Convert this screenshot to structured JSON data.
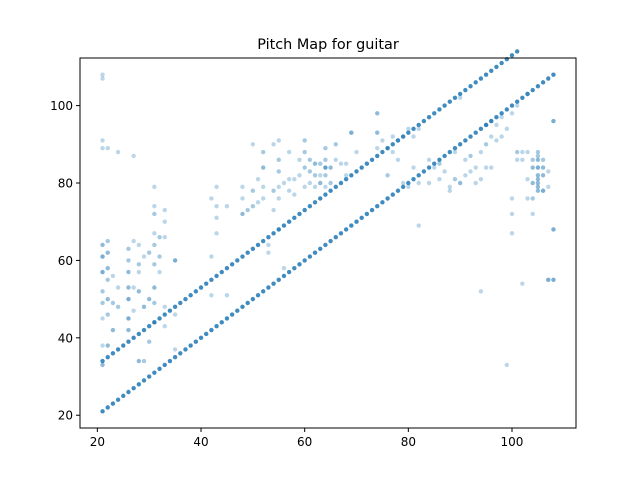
{
  "chart_data": {
    "type": "scatter",
    "title": "Pitch Map for guitar",
    "xlabel": "",
    "ylabel": "",
    "xlim": [
      16.65,
      112.35
    ],
    "ylim": [
      16.7,
      112.3
    ],
    "xticks": [
      20,
      40,
      60,
      80,
      100
    ],
    "yticks": [
      20,
      40,
      60,
      80,
      100
    ],
    "grid": false,
    "legend": "none",
    "color": "#1f77b4",
    "lines": [
      {
        "x_start": 21,
        "x_end": 101,
        "y_offset": 13,
        "opacity": 0.85
      },
      {
        "x_start": 21,
        "x_end": 108,
        "y_offset": 0,
        "opacity": 0.85
      }
    ],
    "points": [
      [
        21,
        108,
        0.3
      ],
      [
        21,
        107,
        0.3
      ],
      [
        21,
        91,
        0.3
      ],
      [
        21,
        89,
        0.3
      ],
      [
        22,
        89,
        0.3
      ],
      [
        24,
        88,
        0.3
      ],
      [
        27,
        87,
        0.3
      ],
      [
        21,
        64,
        0.5
      ],
      [
        21,
        61,
        0.6
      ],
      [
        21,
        57,
        0.6
      ],
      [
        21,
        52,
        0.4
      ],
      [
        21,
        49,
        0.4
      ],
      [
        21,
        45,
        0.3
      ],
      [
        21,
        38,
        0.3
      ],
      [
        21,
        33,
        0.5
      ],
      [
        22,
        65,
        0.4
      ],
      [
        22,
        62,
        0.5
      ],
      [
        22,
        58,
        0.5
      ],
      [
        22,
        55,
        0.4
      ],
      [
        22,
        50,
        0.5
      ],
      [
        22,
        46,
        0.4
      ],
      [
        22,
        38,
        0.5
      ],
      [
        23,
        56,
        0.3
      ],
      [
        23,
        49,
        0.4
      ],
      [
        23,
        42,
        0.5
      ],
      [
        24,
        53,
        0.3
      ],
      [
        24,
        48,
        0.4
      ],
      [
        26,
        63,
        0.4
      ],
      [
        26,
        60,
        0.4
      ],
      [
        26,
        57,
        0.5
      ],
      [
        26,
        53,
        0.5
      ],
      [
        26,
        50,
        0.6
      ],
      [
        26,
        45,
        0.6
      ],
      [
        26,
        42,
        0.5
      ],
      [
        27,
        65,
        0.3
      ],
      [
        27,
        53,
        0.3
      ],
      [
        27,
        47,
        0.3
      ],
      [
        28,
        64,
        0.3
      ],
      [
        28,
        59,
        0.4
      ],
      [
        28,
        57,
        0.3
      ],
      [
        28,
        52,
        0.5
      ],
      [
        28,
        34,
        0.5
      ],
      [
        29,
        61,
        0.3
      ],
      [
        29,
        48,
        0.5
      ],
      [
        29,
        34,
        0.4
      ],
      [
        30,
        62,
        0.4
      ],
      [
        30,
        50,
        0.5
      ],
      [
        30,
        39,
        0.4
      ],
      [
        31,
        79,
        0.3
      ],
      [
        31,
        74,
        0.3
      ],
      [
        31,
        72,
        0.4
      ],
      [
        31,
        67,
        0.3
      ],
      [
        31,
        64,
        0.4
      ],
      [
        31,
        59,
        0.4
      ],
      [
        31,
        53,
        0.5
      ],
      [
        31,
        49,
        0.4
      ],
      [
        31,
        44,
        0.5
      ],
      [
        32,
        66,
        0.4
      ],
      [
        32,
        61,
        0.4
      ],
      [
        32,
        57,
        0.3
      ],
      [
        33,
        73,
        0.3
      ],
      [
        33,
        70,
        0.3
      ],
      [
        33,
        66,
        0.3
      ],
      [
        33,
        48,
        0.3
      ],
      [
        33,
        43,
        0.3
      ],
      [
        35,
        60,
        0.6
      ],
      [
        35,
        46,
        0.3
      ],
      [
        35,
        37,
        0.3
      ],
      [
        42,
        76,
        0.3
      ],
      [
        42,
        61,
        0.3
      ],
      [
        42,
        51,
        0.3
      ],
      [
        43,
        79,
        0.3
      ],
      [
        43,
        74,
        0.3
      ],
      [
        43,
        71,
        0.3
      ],
      [
        43,
        67,
        0.3
      ],
      [
        45,
        74,
        0.3
      ],
      [
        45,
        51,
        0.3
      ],
      [
        48,
        79,
        0.3
      ],
      [
        48,
        76,
        0.3
      ],
      [
        48,
        72,
        0.5
      ],
      [
        49,
        73,
        0.4
      ],
      [
        50,
        90,
        0.3
      ],
      [
        50,
        78,
        0.4
      ],
      [
        50,
        74,
        0.4
      ],
      [
        51,
        81,
        0.3
      ],
      [
        51,
        75,
        0.3
      ],
      [
        52,
        88,
        0.4
      ],
      [
        52,
        84,
        0.5
      ],
      [
        52,
        79,
        0.3
      ],
      [
        52,
        76,
        0.3
      ],
      [
        53,
        64,
        0.3
      ],
      [
        53,
        62,
        0.3
      ],
      [
        54,
        90,
        0.3
      ],
      [
        54,
        78,
        0.4
      ],
      [
        54,
        73,
        0.3
      ],
      [
        55,
        91,
        0.3
      ],
      [
        55,
        86,
        0.4
      ],
      [
        55,
        83,
        0.4
      ],
      [
        55,
        79,
        0.3
      ],
      [
        55,
        76,
        0.3
      ],
      [
        55,
        68,
        0.3
      ],
      [
        56,
        80,
        0.3
      ],
      [
        56,
        58,
        0.3
      ],
      [
        57,
        88,
        0.3
      ],
      [
        57,
        81,
        0.3
      ],
      [
        57,
        78,
        0.3
      ],
      [
        58,
        81,
        0.3
      ],
      [
        58,
        77,
        0.3
      ],
      [
        59,
        86,
        0.3
      ],
      [
        59,
        82,
        0.3
      ],
      [
        60,
        91,
        0.4
      ],
      [
        60,
        88,
        0.4
      ],
      [
        60,
        84,
        0.4
      ],
      [
        60,
        79,
        0.3
      ],
      [
        61,
        86,
        0.4
      ],
      [
        61,
        83,
        0.4
      ],
      [
        61,
        80,
        0.3
      ],
      [
        62,
        85,
        0.5
      ],
      [
        62,
        82,
        0.4
      ],
      [
        62,
        79,
        0.3
      ],
      [
        63,
        85,
        0.4
      ],
      [
        63,
        82,
        0.3
      ],
      [
        63,
        80,
        0.5
      ],
      [
        64,
        89,
        0.4
      ],
      [
        64,
        86,
        0.4
      ],
      [
        64,
        84,
        0.7
      ],
      [
        64,
        82,
        0.4
      ],
      [
        64,
        79,
        0.3
      ],
      [
        65,
        84,
        0.5
      ],
      [
        65,
        80,
        0.4
      ],
      [
        66,
        90,
        0.4
      ],
      [
        66,
        86,
        0.3
      ],
      [
        67,
        85,
        0.3
      ],
      [
        68,
        85,
        0.3
      ],
      [
        68,
        82,
        0.3
      ],
      [
        69,
        93,
        0.6
      ],
      [
        70,
        88,
        0.3
      ],
      [
        74,
        98,
        0.5
      ],
      [
        74,
        93,
        0.5
      ],
      [
        74,
        89,
        0.3
      ],
      [
        75,
        91,
        0.3
      ],
      [
        76,
        89,
        0.4
      ],
      [
        76,
        82,
        0.4
      ],
      [
        77,
        92,
        0.3
      ],
      [
        77,
        88,
        0.3
      ],
      [
        78,
        91,
        0.3
      ],
      [
        78,
        86,
        0.3
      ],
      [
        79,
        92,
        0.3
      ],
      [
        79,
        80,
        0.3
      ],
      [
        80,
        94,
        0.3
      ],
      [
        80,
        79,
        0.3
      ],
      [
        81,
        92,
        0.3
      ],
      [
        81,
        84,
        0.3
      ],
      [
        82,
        69,
        0.3
      ],
      [
        82,
        80,
        0.3
      ],
      [
        82,
        94,
        0.3
      ],
      [
        84,
        86,
        0.3
      ],
      [
        84,
        80,
        0.3
      ],
      [
        85,
        84,
        0.3
      ],
      [
        86,
        85,
        0.4
      ],
      [
        86,
        81,
        0.3
      ],
      [
        87,
        83,
        0.3
      ],
      [
        88,
        78,
        0.3
      ],
      [
        88,
        79,
        0.3
      ],
      [
        89,
        81,
        0.4
      ],
      [
        89,
        88,
        0.3
      ],
      [
        90,
        102,
        0.3
      ],
      [
        90,
        80,
        0.5
      ],
      [
        91,
        86,
        0.3
      ],
      [
        91,
        82,
        0.3
      ],
      [
        92,
        87,
        0.4
      ],
      [
        92,
        83,
        0.3
      ],
      [
        93,
        80,
        0.3
      ],
      [
        93,
        84,
        0.3
      ],
      [
        94,
        52,
        0.3
      ],
      [
        94,
        88,
        0.3
      ],
      [
        94,
        81,
        0.3
      ],
      [
        95,
        95,
        0.5
      ],
      [
        95,
        90,
        0.4
      ],
      [
        95,
        84,
        0.3
      ],
      [
        96,
        96,
        0.4
      ],
      [
        96,
        92,
        0.3
      ],
      [
        96,
        84,
        0.3
      ],
      [
        97,
        95,
        0.3
      ],
      [
        97,
        91,
        0.3
      ],
      [
        98,
        92,
        0.3
      ],
      [
        98,
        97,
        0.3
      ],
      [
        99,
        33,
        0.3
      ],
      [
        99,
        94,
        0.3
      ],
      [
        100,
        76,
        0.3
      ],
      [
        100,
        72,
        0.3
      ],
      [
        100,
        67,
        0.3
      ],
      [
        100,
        98,
        0.3
      ],
      [
        101,
        100,
        0.3
      ],
      [
        101,
        88,
        0.4
      ],
      [
        101,
        86,
        0.3
      ],
      [
        102,
        54,
        0.3
      ],
      [
        102,
        88,
        0.3
      ],
      [
        102,
        86,
        0.3
      ],
      [
        103,
        103,
        0.3
      ],
      [
        103,
        88,
        0.3
      ],
      [
        103,
        81,
        0.3
      ],
      [
        103,
        76,
        0.3
      ],
      [
        104,
        86,
        0.4
      ],
      [
        104,
        84,
        0.5
      ],
      [
        104,
        80,
        0.5
      ],
      [
        104,
        76,
        0.4
      ],
      [
        104,
        72,
        0.3
      ],
      [
        105,
        88,
        0.4
      ],
      [
        105,
        87,
        0.4
      ],
      [
        105,
        86,
        0.5
      ],
      [
        105,
        84,
        0.6
      ],
      [
        105,
        82,
        0.5
      ],
      [
        105,
        81,
        0.5
      ],
      [
        105,
        80,
        0.5
      ],
      [
        105,
        79,
        0.5
      ],
      [
        105,
        78,
        0.5
      ],
      [
        106,
        86,
        0.4
      ],
      [
        106,
        84,
        0.5
      ],
      [
        106,
        82,
        0.5
      ],
      [
        106,
        78,
        0.6
      ],
      [
        107,
        55,
        0.6
      ],
      [
        107,
        79,
        0.3
      ],
      [
        107,
        83,
        0.3
      ],
      [
        108,
        55,
        0.6
      ],
      [
        108,
        68,
        0.6
      ],
      [
        108,
        96,
        0.6
      ]
    ]
  }
}
